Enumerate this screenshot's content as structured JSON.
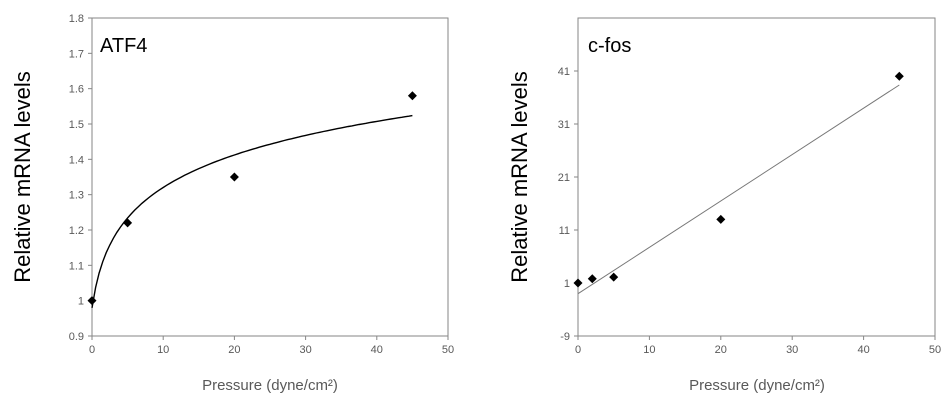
{
  "chart_data": [
    {
      "type": "scatter",
      "title": "ATF4",
      "xlabel": "Pressure (dyne/cm²)",
      "ylabel": "Relative mRNA levels",
      "xlim": [
        0,
        50
      ],
      "ylim": [
        0.9,
        1.8
      ],
      "xticks": [
        "0",
        "10",
        "20",
        "30",
        "40",
        "50"
      ],
      "yticks": [
        "0.9",
        "1",
        "1.1",
        "1.2",
        "1.3",
        "1.4",
        "1.5",
        "1.6",
        "1.7",
        "1.8"
      ],
      "grid": false,
      "trendline": "power/log curve fit",
      "series": [
        {
          "x": [
            0,
            5,
            20,
            45
          ],
          "y": [
            1.0,
            1.22,
            1.35,
            1.58
          ]
        }
      ]
    },
    {
      "type": "scatter",
      "title": "c-fos",
      "xlabel": "Pressure (dyne/cm²)",
      "ylabel": "Relative mRNA levels",
      "xlim": [
        0,
        50
      ],
      "ylim": [
        -9,
        51
      ],
      "xticks": [
        "0",
        "10",
        "20",
        "30",
        "40",
        "50"
      ],
      "yticks": [
        "-9",
        "1",
        "11",
        "21",
        "31",
        "41"
      ],
      "grid": false,
      "trendline": "linear fit",
      "series": [
        {
          "x": [
            0,
            2,
            5,
            20,
            45
          ],
          "y": [
            1.0,
            1.8,
            2.1,
            13.0,
            40.0
          ]
        }
      ]
    }
  ]
}
